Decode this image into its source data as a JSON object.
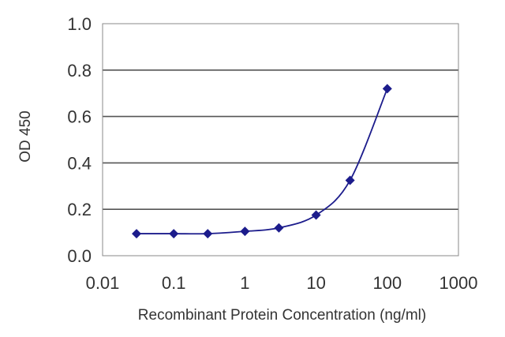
{
  "chart_data": {
    "type": "line",
    "xlabel": "Recombinant Protein Concentration (ng/ml)",
    "ylabel": "OD 450",
    "x_scale": "log",
    "xlim": [
      0.01,
      1000
    ],
    "ylim": [
      0.0,
      1.0
    ],
    "x_ticks": [
      "0.01",
      "0.1",
      "1",
      "10",
      "100",
      "1000"
    ],
    "y_ticks": [
      "0.0",
      "0.2",
      "0.4",
      "0.6",
      "0.8",
      "1.0"
    ],
    "grid": "horizontal",
    "colors": {
      "series": "#1c1c8c",
      "grid": "#555555",
      "plot_bg": "#ffffff"
    },
    "series": [
      {
        "x": [
          0.03,
          0.1,
          0.3,
          1,
          3,
          10,
          30,
          100
        ],
        "y": [
          0.095,
          0.095,
          0.095,
          0.105,
          0.12,
          0.175,
          0.325,
          0.72
        ]
      }
    ]
  }
}
